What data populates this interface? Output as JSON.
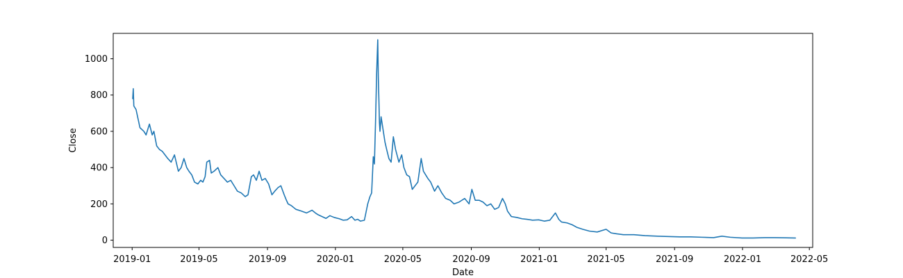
{
  "chart_data": {
    "type": "line",
    "title": "",
    "xlabel": "Date",
    "ylabel": "Close",
    "grid": false,
    "x_type": "date",
    "xlim": [
      "2018-11-28",
      "2022-05-07"
    ],
    "ylim": [
      -40,
      1140
    ],
    "x_ticks": [
      {
        "label": "2019-01",
        "date": "2019-01-01"
      },
      {
        "label": "2019-05",
        "date": "2019-05-01"
      },
      {
        "label": "2019-09",
        "date": "2019-09-01"
      },
      {
        "label": "2020-01",
        "date": "2020-01-01"
      },
      {
        "label": "2020-05",
        "date": "2020-05-01"
      },
      {
        "label": "2020-09",
        "date": "2020-09-01"
      },
      {
        "label": "2021-01",
        "date": "2021-01-01"
      },
      {
        "label": "2021-05",
        "date": "2021-05-01"
      },
      {
        "label": "2021-09",
        "date": "2021-09-01"
      },
      {
        "label": "2022-01",
        "date": "2022-01-01"
      },
      {
        "label": "2022-05",
        "date": "2022-05-01"
      }
    ],
    "y_ticks": [
      0,
      200,
      400,
      600,
      800,
      1000
    ],
    "series": [
      {
        "color": "#1f77b4",
        "x": [
          "2019-01-02",
          "2019-01-03",
          "2019-01-04",
          "2019-01-08",
          "2019-01-15",
          "2019-01-22",
          "2019-01-26",
          "2019-02-01",
          "2019-02-06",
          "2019-02-09",
          "2019-02-14",
          "2019-02-19",
          "2019-02-24",
          "2019-03-01",
          "2019-03-06",
          "2019-03-12",
          "2019-03-18",
          "2019-03-25",
          "2019-03-30",
          "2019-04-04",
          "2019-04-09",
          "2019-04-13",
          "2019-04-18",
          "2019-04-23",
          "2019-04-29",
          "2019-05-04",
          "2019-05-08",
          "2019-05-12",
          "2019-05-15",
          "2019-05-20",
          "2019-05-23",
          "2019-05-28",
          "2019-06-04",
          "2019-06-09",
          "2019-06-15",
          "2019-06-21",
          "2019-06-27",
          "2019-07-03",
          "2019-07-09",
          "2019-07-16",
          "2019-07-23",
          "2019-07-28",
          "2019-08-03",
          "2019-08-07",
          "2019-08-12",
          "2019-08-17",
          "2019-08-22",
          "2019-08-28",
          "2019-09-03",
          "2019-09-09",
          "2019-09-14",
          "2019-09-20",
          "2019-09-25",
          "2019-10-01",
          "2019-10-05",
          "2019-10-08",
          "2019-10-14",
          "2019-10-22",
          "2019-11-01",
          "2019-11-10",
          "2019-11-20",
          "2019-11-26",
          "2019-12-01",
          "2019-12-08",
          "2019-12-15",
          "2019-12-22",
          "2019-12-30",
          "2020-01-08",
          "2020-01-15",
          "2020-01-22",
          "2020-01-30",
          "2020-02-05",
          "2020-02-10",
          "2020-02-15",
          "2020-02-22",
          "2020-02-28",
          "2020-03-03",
          "2020-03-06",
          "2020-03-09",
          "2020-03-11",
          "2020-03-13",
          "2020-03-15",
          "2020-03-17",
          "2020-03-18",
          "2020-03-19",
          "2020-03-20",
          "2020-03-21",
          "2020-03-23",
          "2020-03-25",
          "2020-03-27",
          "2020-03-30",
          "2020-04-02",
          "2020-04-06",
          "2020-04-10",
          "2020-04-14",
          "2020-04-18",
          "2020-04-24",
          "2020-04-29",
          "2020-05-03",
          "2020-05-08",
          "2020-05-13",
          "2020-05-18",
          "2020-05-23",
          "2020-05-28",
          "2020-06-03",
          "2020-06-07",
          "2020-06-11",
          "2020-06-15",
          "2020-06-20",
          "2020-06-27",
          "2020-07-03",
          "2020-07-10",
          "2020-07-17",
          "2020-07-25",
          "2020-08-01",
          "2020-08-10",
          "2020-08-20",
          "2020-08-28",
          "2020-09-02",
          "2020-09-08",
          "2020-09-15",
          "2020-09-22",
          "2020-09-29",
          "2020-10-06",
          "2020-10-13",
          "2020-10-20",
          "2020-10-27",
          "2020-11-01",
          "2020-11-05",
          "2020-11-12",
          "2020-11-22",
          "2020-12-01",
          "2020-12-10",
          "2020-12-20",
          "2020-12-31",
          "2021-01-10",
          "2021-01-20",
          "2021-01-30",
          "2021-02-05",
          "2021-02-10",
          "2021-02-20",
          "2021-03-01",
          "2021-03-10",
          "2021-03-20",
          "2021-04-01",
          "2021-04-15",
          "2021-05-01",
          "2021-05-10",
          "2021-05-20",
          "2021-06-01",
          "2021-06-20",
          "2021-07-10",
          "2021-08-01",
          "2021-08-20",
          "2021-09-10",
          "2021-09-30",
          "2021-10-20",
          "2021-11-10",
          "2021-11-25",
          "2021-12-10",
          "2021-12-31",
          "2022-01-20",
          "2022-02-10",
          "2022-02-28",
          "2022-03-20",
          "2022-04-06"
        ],
        "y": [
          780,
          835,
          740,
          720,
          620,
          600,
          580,
          640,
          580,
          600,
          520,
          500,
          490,
          470,
          450,
          430,
          470,
          380,
          400,
          450,
          400,
          380,
          360,
          320,
          310,
          330,
          320,
          350,
          430,
          440,
          370,
          380,
          400,
          360,
          340,
          320,
          330,
          300,
          270,
          260,
          240,
          250,
          350,
          360,
          330,
          380,
          330,
          340,
          310,
          250,
          270,
          290,
          300,
          250,
          220,
          200,
          190,
          170,
          160,
          150,
          165,
          150,
          140,
          130,
          120,
          135,
          125,
          118,
          110,
          112,
          130,
          110,
          115,
          105,
          110,
          200,
          240,
          260,
          460,
          420,
          650,
          920,
          1105,
          900,
          780,
          650,
          600,
          680,
          640,
          600,
          540,
          500,
          450,
          430,
          570,
          500,
          430,
          470,
          400,
          360,
          350,
          280,
          300,
          320,
          450,
          380,
          360,
          340,
          320,
          270,
          300,
          260,
          230,
          220,
          200,
          210,
          230,
          200,
          280,
          220,
          220,
          210,
          190,
          200,
          170,
          180,
          230,
          200,
          160,
          130,
          125,
          118,
          115,
          110,
          112,
          105,
          110,
          150,
          115,
          100,
          95,
          85,
          70,
          60,
          50,
          45,
          60,
          40,
          35,
          30,
          30,
          25,
          22,
          20,
          18,
          18,
          16,
          14,
          22,
          16,
          12,
          12,
          14,
          14,
          13,
          12
        ]
      }
    ]
  }
}
